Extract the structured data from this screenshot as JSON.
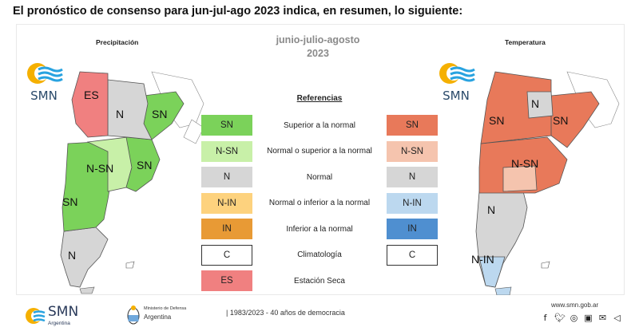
{
  "headline": "El pronóstico de consenso para  jun-jul-ago 2023 indica, en resumen, lo siguiente:",
  "season": {
    "line1": "junio-julio-agosto",
    "line2": "2023"
  },
  "maps": {
    "precipitation": {
      "title": "Precipitación",
      "labels": {
        "es": "ES",
        "n": "N",
        "sn_ne": "SN",
        "nsn_center": "N-SN",
        "sn_east": "SN",
        "sn_west": "SN",
        "n_south": "N"
      }
    },
    "temperature": {
      "title": "Temperatura",
      "labels": {
        "n_north": "N",
        "sn_west": "SN",
        "sn_ne": "SN",
        "nsn_center": "N-SN",
        "n_south": "N",
        "nin_south": "N-IN"
      }
    }
  },
  "logo": {
    "text": "SMN"
  },
  "legend": {
    "title": "Referencias",
    "rows": [
      {
        "left_code": "SN",
        "left_color": "#7bd25a",
        "label": "Superior a la normal",
        "right_code": "SN",
        "right_color": "#e8795a"
      },
      {
        "left_code": "N-SN",
        "left_color": "#c8f0a8",
        "label": "Normal o superior a la normal",
        "right_code": "N-SN",
        "right_color": "#f5c4ae"
      },
      {
        "left_code": "N",
        "left_color": "#d6d6d6",
        "label": "Normal",
        "right_code": "N",
        "right_color": "#d6d6d6"
      },
      {
        "left_code": "N-IN",
        "left_color": "#fdd27e",
        "label": "Normal o inferior a la normal",
        "right_code": "N-IN",
        "right_color": "#bcd8ef"
      },
      {
        "left_code": "IN",
        "left_color": "#e89a35",
        "label": "Inferior a la normal",
        "right_code": "IN",
        "right_color": "#4f8fd0"
      },
      {
        "left_code": "C",
        "left_color": "#ffffff",
        "label": "Climatología",
        "right_code": "C",
        "right_color": "#ffffff"
      },
      {
        "left_code": "ES",
        "left_color": "#f08080",
        "label": "Estación Seca"
      }
    ]
  },
  "footer": {
    "smn_word": "SMN",
    "smn_sub": "Argentina",
    "ministry_line1": "Ministerio de Defensa",
    "ministry_line2": "Argentina",
    "democracy": "| 1983/2023 - 40 años de democracia",
    "website": "www.smn.gob.ar",
    "social_icons": [
      "facebook-icon",
      "twitter-icon",
      "instagram-icon",
      "youtube-icon",
      "mail-icon",
      "telegram-icon"
    ]
  },
  "colors": {
    "sn_precip": "#7bd25a",
    "nsn_precip": "#c8f0a8",
    "normal": "#d6d6d6",
    "es": "#f08080",
    "sn_temp": "#e8795a",
    "nsn_temp": "#f5c4ae",
    "nin_temp": "#bcd8ef"
  }
}
